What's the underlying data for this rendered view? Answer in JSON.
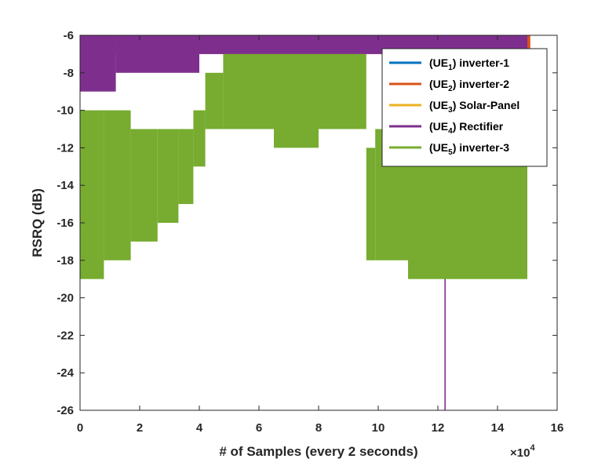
{
  "chart_data": {
    "type": "line",
    "title": "",
    "xlabel": "# of Samples (every 2 seconds)",
    "ylabel": "RSRQ (dB)",
    "x_exponent_label": "×10",
    "x_exponent_power": "4",
    "xlim": [
      0,
      160000
    ],
    "ylim": [
      -26,
      -6
    ],
    "xticks": [
      0,
      20000,
      40000,
      60000,
      80000,
      100000,
      120000,
      140000,
      160000
    ],
    "xtick_labels": [
      "0",
      "2",
      "4",
      "6",
      "8",
      "10",
      "12",
      "14",
      "16"
    ],
    "yticks": [
      -26,
      -24,
      -22,
      -20,
      -18,
      -16,
      -14,
      -12,
      -10,
      -8,
      -6
    ],
    "ytick_labels": [
      "-26",
      "-24",
      "-22",
      "-20",
      "-18",
      "-16",
      "-14",
      "-12",
      "-10",
      "-8",
      "-6"
    ],
    "grid": false,
    "legend_position": "top-right",
    "series": [
      {
        "name": "inverter-1",
        "legend_prefix": "(UE",
        "legend_sub": "1",
        "legend_suffix": ") inverter-1",
        "color": "#0072BD",
        "segments": [
          {
            "x0": 0,
            "x1": 150000,
            "ymin": -6,
            "ymax": -6
          }
        ]
      },
      {
        "name": "inverter-2",
        "legend_prefix": "(UE",
        "legend_sub": "2",
        "legend_suffix": ") inverter-2",
        "color": "#D95319",
        "segments": [
          {
            "x0": 0,
            "x1": 151000,
            "ymin": -7,
            "ymax": -6
          }
        ]
      },
      {
        "name": "Solar-Panel",
        "legend_prefix": "(UE",
        "legend_sub": "3",
        "legend_suffix": ") Solar-Panel",
        "color": "#EDB120",
        "segments": [
          {
            "x0": 23000,
            "x1": 42000,
            "ymin": -7,
            "ymax": -6
          }
        ]
      },
      {
        "name": "Rectifier",
        "legend_prefix": "(UE",
        "legend_sub": "4",
        "legend_suffix": ") Rectifier",
        "color": "#7E2F8E",
        "segments": [
          {
            "x0": 0,
            "x1": 12000,
            "ymin": -9,
            "ymax": -6
          },
          {
            "x0": 12000,
            "x1": 40000,
            "ymin": -8,
            "ymax": -6
          },
          {
            "x0": 40000,
            "x1": 150000,
            "ymin": -7,
            "ymax": -6
          },
          {
            "x0": 122200,
            "x1": 122600,
            "ymin": -26,
            "ymax": -6
          }
        ]
      },
      {
        "name": "inverter-3",
        "legend_prefix": "(UE",
        "legend_sub": "5",
        "legend_suffix": ") inverter-3",
        "color": "#77AC30",
        "segments": [
          {
            "x0": 0,
            "x1": 8000,
            "ymin": -19,
            "ymax": -10
          },
          {
            "x0": 8000,
            "x1": 17000,
            "ymin": -18,
            "ymax": -10
          },
          {
            "x0": 17000,
            "x1": 26000,
            "ymin": -17,
            "ymax": -11
          },
          {
            "x0": 26000,
            "x1": 33000,
            "ymin": -16,
            "ymax": -11
          },
          {
            "x0": 33000,
            "x1": 38000,
            "ymin": -15,
            "ymax": -11
          },
          {
            "x0": 38000,
            "x1": 42000,
            "ymin": -13,
            "ymax": -10
          },
          {
            "x0": 42000,
            "x1": 48000,
            "ymin": -11,
            "ymax": -8
          },
          {
            "x0": 48000,
            "x1": 65000,
            "ymin": -11,
            "ymax": -7
          },
          {
            "x0": 65000,
            "x1": 80000,
            "ymin": -12,
            "ymax": -7
          },
          {
            "x0": 80000,
            "x1": 96000,
            "ymin": -11,
            "ymax": -7
          },
          {
            "x0": 96000,
            "x1": 99000,
            "ymin": -18,
            "ymax": -12
          },
          {
            "x0": 99000,
            "x1": 110000,
            "ymin": -18,
            "ymax": -11
          },
          {
            "x0": 110000,
            "x1": 150000,
            "ymin": -19,
            "ymax": -12
          }
        ]
      }
    ]
  }
}
